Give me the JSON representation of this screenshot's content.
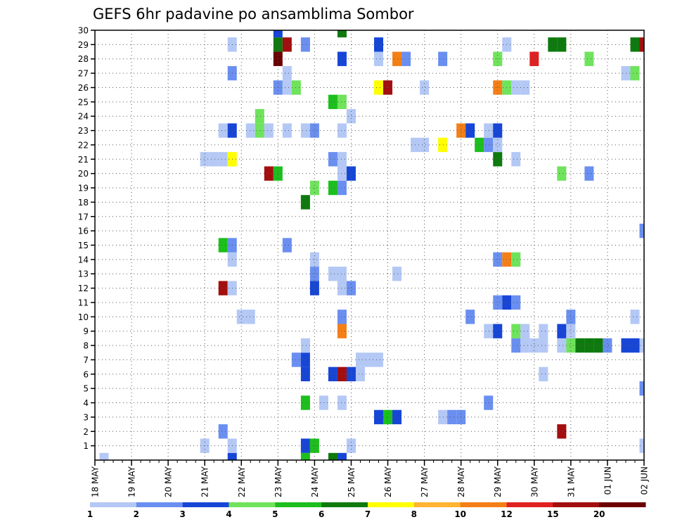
{
  "chart_data": {
    "type": "heatmap",
    "title": "GEFS 6hr padavine po ansamblima Sombor",
    "xlabel": "",
    "ylabel": "",
    "x_tick_labels": [
      "18 MAY",
      "19 MAY",
      "20 MAY",
      "21 MAY",
      "22 MAY",
      "23 MAY",
      "24 MAY",
      "25 MAY",
      "26 MAY",
      "27 MAY",
      "28 MAY",
      "29 MAY",
      "30 MAY",
      "31 MAY",
      "01 JUN",
      "02 JUN"
    ],
    "y_tick_labels": [
      "1",
      "2",
      "3",
      "4",
      "5",
      "6",
      "7",
      "8",
      "9",
      "10",
      "11",
      "12",
      "13",
      "14",
      "15",
      "16",
      "17",
      "18",
      "19",
      "20",
      "21",
      "22",
      "23",
      "24",
      "25",
      "26",
      "27",
      "28",
      "29",
      "30"
    ],
    "x_range_days": [
      0,
      15
    ],
    "y_range": [
      0,
      30
    ],
    "grid": true,
    "legend": {
      "position": "bottom",
      "labels": [
        "1",
        "2",
        "3",
        "4",
        "5",
        "6",
        "7",
        "8",
        "10",
        "12",
        "15",
        "20"
      ],
      "colors": [
        "#b4c8f5",
        "#6a8ff0",
        "#1746d6",
        "#6fe35c",
        "#1cbf1c",
        "#0e7a0e",
        "#ffff00",
        "#ffb432",
        "#f57f17",
        "#e02121",
        "#a30f0f",
        "#6b0000"
      ]
    },
    "cells_format": [
      "x_day_offset_from_18_may",
      "ensemble_member_y",
      "category_index_0_to_11"
    ],
    "cells": [
      [
        0.25,
        0,
        0
      ],
      [
        3.75,
        0,
        2
      ],
      [
        5.75,
        0,
        4
      ],
      [
        6.5,
        0,
        5
      ],
      [
        6.75,
        0,
        2
      ],
      [
        3.75,
        1,
        0
      ],
      [
        3,
        1,
        0
      ],
      [
        5.75,
        1,
        2
      ],
      [
        6,
        1,
        4
      ],
      [
        7,
        1,
        0
      ],
      [
        15,
        1,
        0
      ],
      [
        3.5,
        2,
        1
      ],
      [
        12.75,
        2,
        10
      ],
      [
        7.75,
        3,
        2
      ],
      [
        8,
        3,
        4
      ],
      [
        8.25,
        3,
        2
      ],
      [
        9.5,
        3,
        0
      ],
      [
        9.75,
        3,
        1
      ],
      [
        10,
        3,
        1
      ],
      [
        5.75,
        4,
        4
      ],
      [
        6.25,
        4,
        0
      ],
      [
        6.75,
        4,
        0
      ],
      [
        10.75,
        4,
        1
      ],
      [
        15,
        5,
        1
      ],
      [
        5.75,
        6,
        2
      ],
      [
        6.5,
        6,
        2
      ],
      [
        6.75,
        6,
        10
      ],
      [
        7,
        6,
        2
      ],
      [
        7.25,
        6,
        0
      ],
      [
        12.25,
        6,
        0
      ],
      [
        5.5,
        7,
        1
      ],
      [
        5.75,
        7,
        2
      ],
      [
        7.25,
        7,
        0
      ],
      [
        7.5,
        7,
        0
      ],
      [
        7.75,
        7,
        0
      ],
      [
        5.75,
        8,
        0
      ],
      [
        11.5,
        8,
        1
      ],
      [
        11.75,
        8,
        0
      ],
      [
        12,
        8,
        0
      ],
      [
        12.25,
        8,
        0
      ],
      [
        12.75,
        8,
        0
      ],
      [
        13,
        8,
        3
      ],
      [
        13.25,
        8,
        5
      ],
      [
        13.5,
        8,
        5
      ],
      [
        13.75,
        8,
        5
      ],
      [
        14,
        8,
        1
      ],
      [
        14.5,
        8,
        2
      ],
      [
        14.75,
        8,
        2
      ],
      [
        15,
        8,
        0
      ],
      [
        6.75,
        9,
        8
      ],
      [
        10.75,
        9,
        0
      ],
      [
        11,
        9,
        2
      ],
      [
        11.5,
        9,
        3
      ],
      [
        11.75,
        9,
        0
      ],
      [
        12.25,
        9,
        0
      ],
      [
        12.75,
        9,
        2
      ],
      [
        13,
        9,
        0
      ],
      [
        4,
        10,
        0
      ],
      [
        4.25,
        10,
        0
      ],
      [
        6.75,
        10,
        1
      ],
      [
        10.25,
        10,
        1
      ],
      [
        13,
        10,
        1
      ],
      [
        14.75,
        10,
        0
      ],
      [
        11,
        11,
        1
      ],
      [
        11.25,
        11,
        2
      ],
      [
        11.5,
        11,
        1
      ],
      [
        3.5,
        12,
        10
      ],
      [
        3.75,
        12,
        0
      ],
      [
        6,
        12,
        2
      ],
      [
        6.75,
        12,
        0
      ],
      [
        7,
        12,
        1
      ],
      [
        6,
        13,
        1
      ],
      [
        6.5,
        13,
        0
      ],
      [
        6.75,
        13,
        0
      ],
      [
        8.25,
        13,
        0
      ],
      [
        3.75,
        14,
        0
      ],
      [
        6,
        14,
        0
      ],
      [
        11,
        14,
        1
      ],
      [
        11.25,
        14,
        8
      ],
      [
        11.5,
        14,
        3
      ],
      [
        3.5,
        15,
        4
      ],
      [
        3.75,
        15,
        1
      ],
      [
        5.25,
        15,
        1
      ],
      [
        15,
        16,
        1
      ],
      [
        5.75,
        18,
        5
      ],
      [
        6,
        19,
        3
      ],
      [
        6.5,
        19,
        4
      ],
      [
        6.75,
        19,
        1
      ],
      [
        4.75,
        20,
        10
      ],
      [
        5,
        20,
        4
      ],
      [
        6.75,
        20,
        0
      ],
      [
        7,
        20,
        2
      ],
      [
        12.75,
        20,
        3
      ],
      [
        13.5,
        20,
        1
      ],
      [
        3,
        21,
        0
      ],
      [
        3.25,
        21,
        0
      ],
      [
        3.5,
        21,
        0
      ],
      [
        3.75,
        21,
        6
      ],
      [
        6.5,
        21,
        1
      ],
      [
        6.75,
        21,
        0
      ],
      [
        11,
        21,
        5
      ],
      [
        11.5,
        21,
        0
      ],
      [
        8.75,
        22,
        0
      ],
      [
        9,
        22,
        0
      ],
      [
        9.5,
        22,
        6
      ],
      [
        10.5,
        22,
        4
      ],
      [
        10.75,
        22,
        1
      ],
      [
        11,
        22,
        0
      ],
      [
        3.5,
        23,
        0
      ],
      [
        3.75,
        23,
        2
      ],
      [
        4.25,
        23,
        0
      ],
      [
        4.5,
        23,
        3
      ],
      [
        4.75,
        23,
        0
      ],
      [
        5.25,
        23,
        0
      ],
      [
        5.75,
        23,
        0
      ],
      [
        6,
        23,
        1
      ],
      [
        6.75,
        23,
        0
      ],
      [
        10,
        23,
        8
      ],
      [
        10.25,
        23,
        2
      ],
      [
        10.75,
        23,
        0
      ],
      [
        11,
        23,
        2
      ],
      [
        4.5,
        24,
        3
      ],
      [
        7,
        24,
        0
      ],
      [
        6.5,
        25,
        4
      ],
      [
        6.75,
        25,
        3
      ],
      [
        5,
        26,
        1
      ],
      [
        5.25,
        26,
        0
      ],
      [
        5.5,
        26,
        3
      ],
      [
        7.75,
        26,
        6
      ],
      [
        8,
        26,
        10
      ],
      [
        9,
        26,
        0
      ],
      [
        11,
        26,
        8
      ],
      [
        11.25,
        26,
        3
      ],
      [
        11.5,
        26,
        0
      ],
      [
        11.75,
        26,
        0
      ],
      [
        3.75,
        27,
        1
      ],
      [
        5.25,
        27,
        0
      ],
      [
        14.5,
        27,
        0
      ],
      [
        14.75,
        27,
        3
      ],
      [
        5,
        28,
        11
      ],
      [
        6.75,
        28,
        2
      ],
      [
        7.75,
        28,
        0
      ],
      [
        8.25,
        28,
        8
      ],
      [
        8.5,
        28,
        1
      ],
      [
        9.5,
        28,
        1
      ],
      [
        11,
        28,
        3
      ],
      [
        12,
        28,
        9
      ],
      [
        13.5,
        28,
        3
      ],
      [
        3.75,
        29,
        0
      ],
      [
        5,
        29,
        5
      ],
      [
        5.25,
        29,
        10
      ],
      [
        5.75,
        29,
        1
      ],
      [
        7.75,
        29,
        2
      ],
      [
        11.25,
        29,
        0
      ],
      [
        12.5,
        29,
        5
      ],
      [
        12.75,
        29,
        5
      ],
      [
        14.75,
        29,
        5
      ],
      [
        15,
        29,
        10
      ],
      [
        5,
        30,
        2
      ],
      [
        6.75,
        30,
        5
      ]
    ]
  }
}
